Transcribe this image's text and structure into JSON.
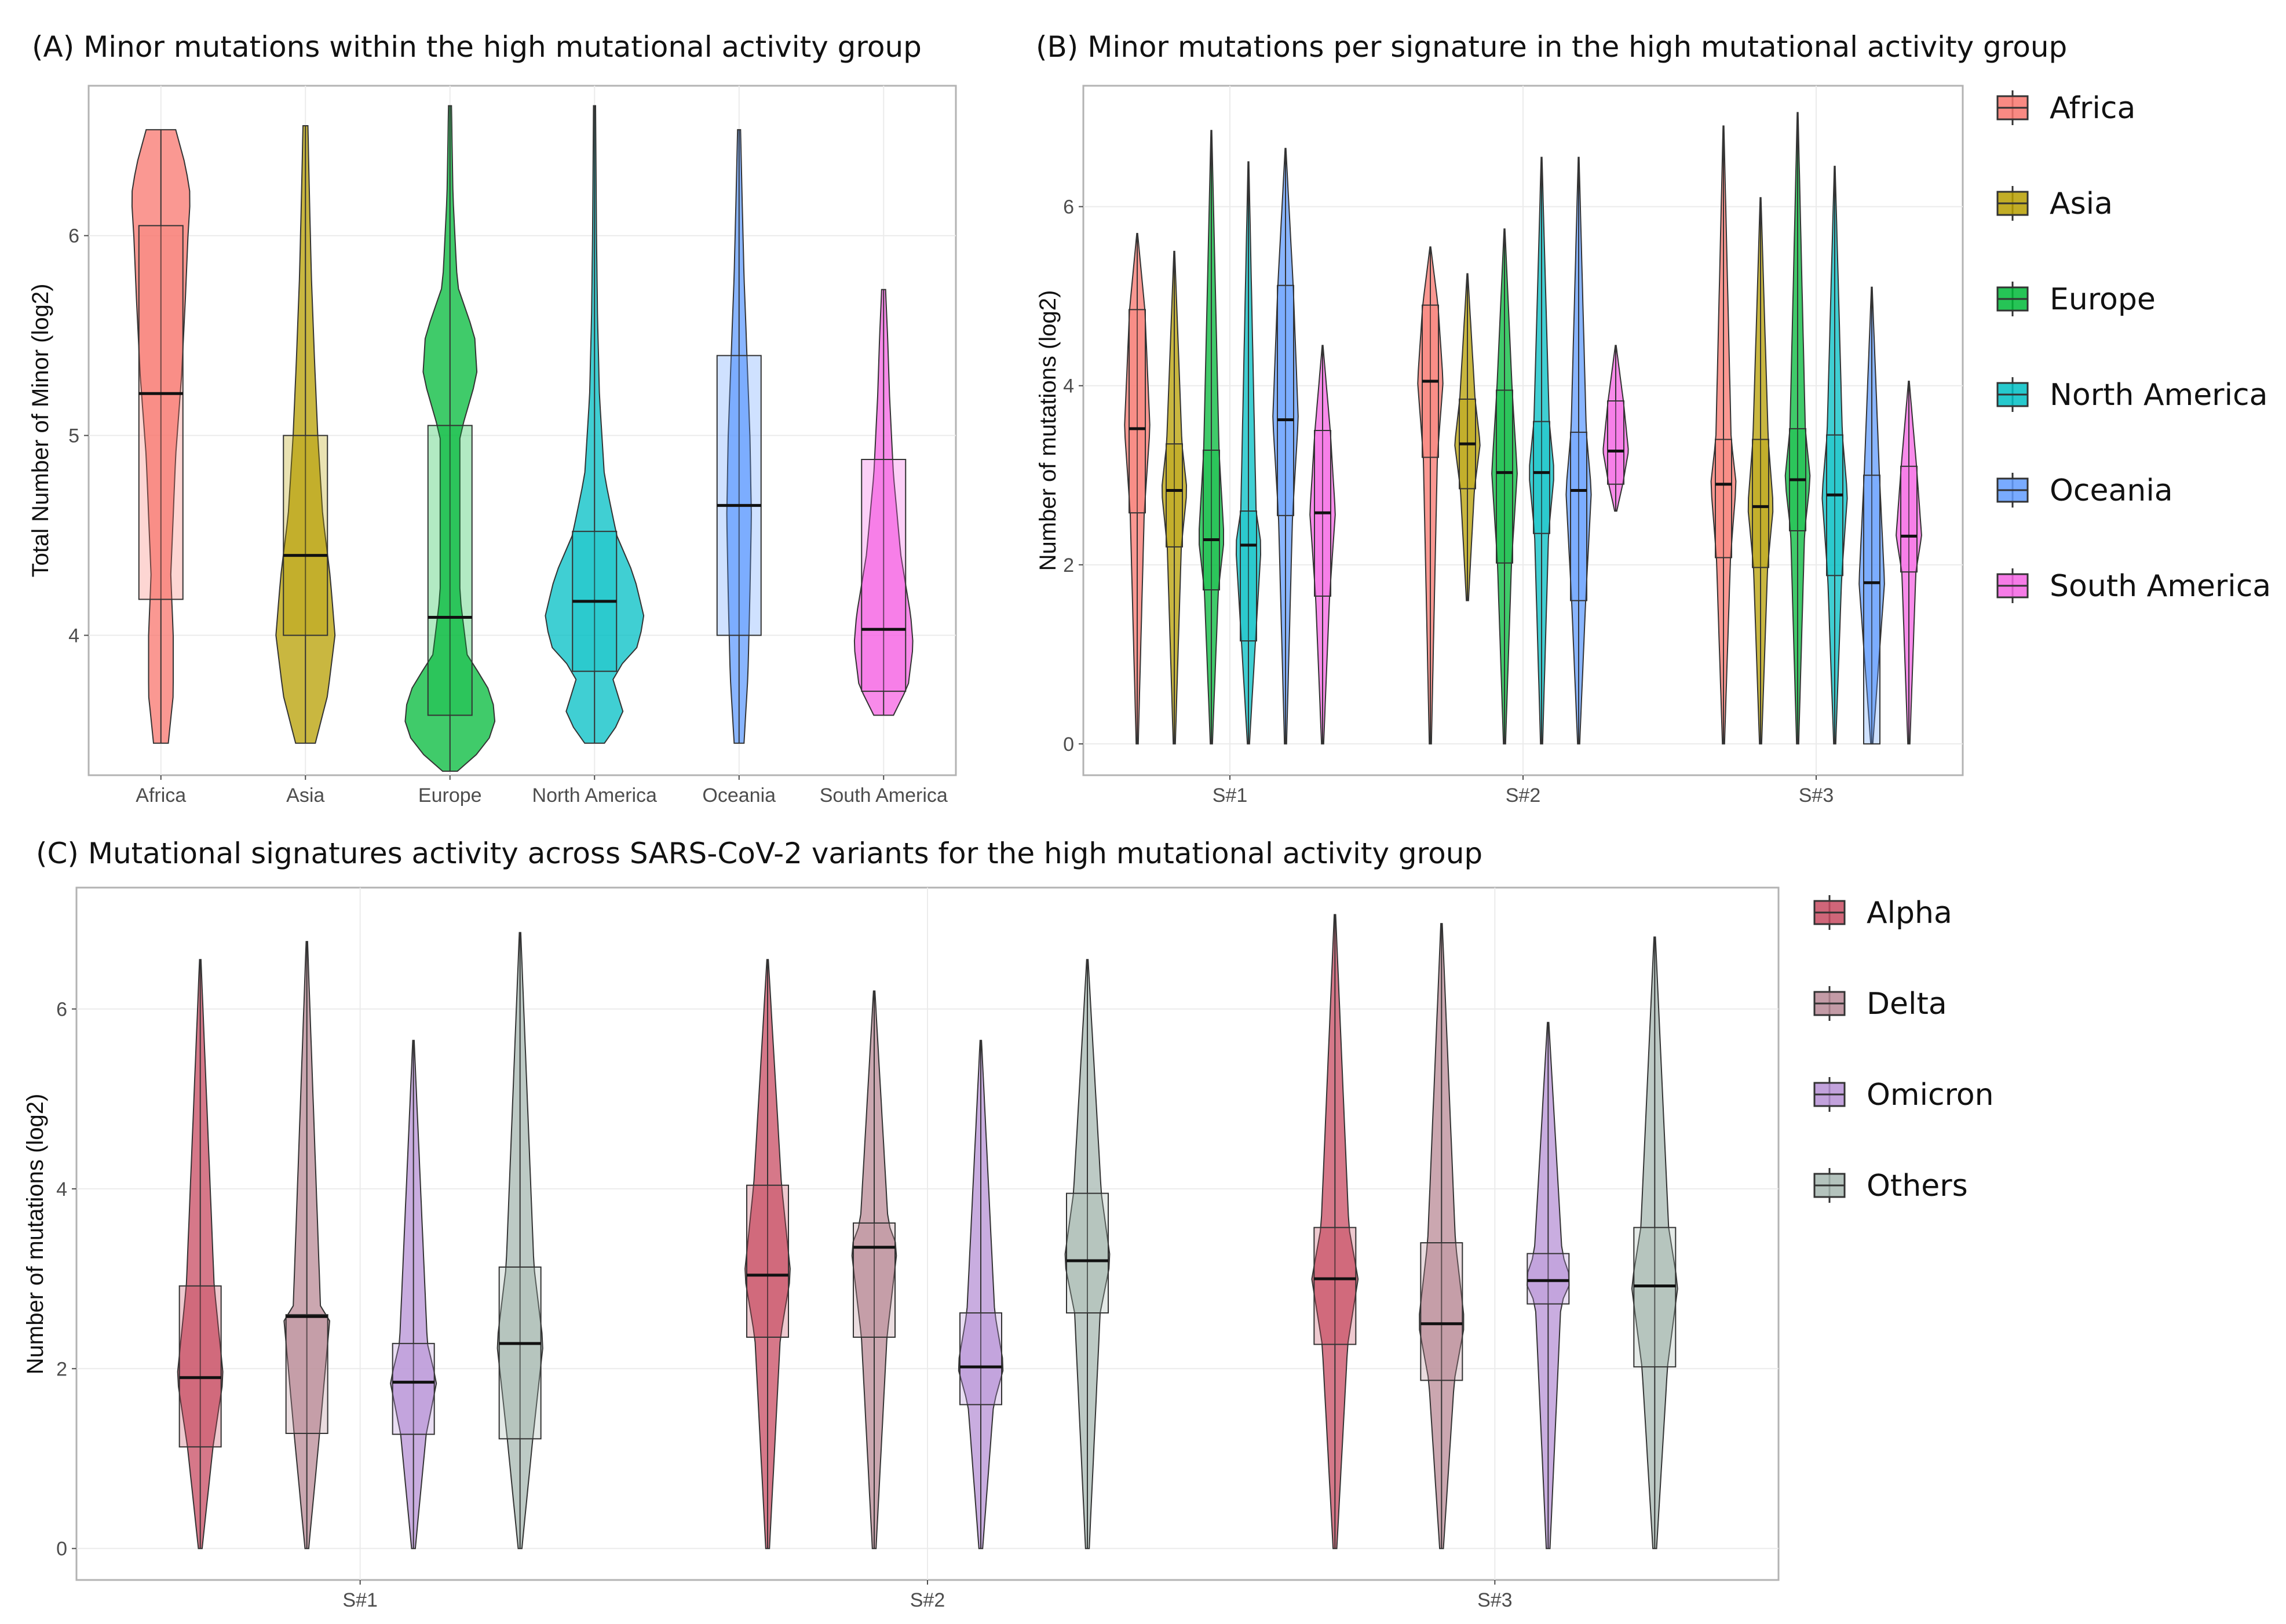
{
  "figure": {
    "panels": [
      {
        "id": "A",
        "title": "(A) Minor mutations within the high mutational activity group",
        "type": "violin+box",
        "xlabel": "",
        "ylabel": "Total Number of Minor (log2)",
        "ylim": [
          3.3,
          6.75
        ],
        "yticks": [
          4,
          5,
          6
        ],
        "categories": [
          "Africa",
          "Asia",
          "Europe",
          "North America",
          "Oceania",
          "South America"
        ],
        "groups": [
          {
            "name": "Africa",
            "color": "#F8766D",
            "min": 3.46,
            "q1": 4.18,
            "median": 5.21,
            "q3": 6.05,
            "max": 6.53,
            "profile": [
              [
                3.46,
                0.15
              ],
              [
                3.7,
                0.25
              ],
              [
                4.0,
                0.25
              ],
              [
                4.3,
                0.2
              ],
              [
                4.6,
                0.25
              ],
              [
                4.9,
                0.3
              ],
              [
                5.3,
                0.42
              ],
              [
                5.7,
                0.5
              ],
              [
                6.0,
                0.55
              ],
              [
                6.2,
                0.6
              ],
              [
                6.35,
                0.5
              ],
              [
                6.53,
                0.3
              ]
            ]
          },
          {
            "name": "Asia",
            "color": "#B79F00",
            "min": 3.46,
            "q1": 4.0,
            "median": 4.4,
            "q3": 5.0,
            "max": 6.55,
            "profile": [
              [
                3.46,
                0.2
              ],
              [
                3.7,
                0.45
              ],
              [
                4.0,
                0.6
              ],
              [
                4.3,
                0.5
              ],
              [
                4.6,
                0.35
              ],
              [
                5.0,
                0.25
              ],
              [
                5.4,
                0.18
              ],
              [
                5.8,
                0.12
              ],
              [
                6.2,
                0.08
              ],
              [
                6.55,
                0.05
              ]
            ]
          },
          {
            "name": "Europe",
            "color": "#00BA38",
            "min": 3.32,
            "q1": 3.6,
            "median": 4.09,
            "q3": 5.05,
            "max": 6.65,
            "profile": [
              [
                3.32,
                0.15
              ],
              [
                3.45,
                0.75
              ],
              [
                3.6,
                0.95
              ],
              [
                3.75,
                0.75
              ],
              [
                3.9,
                0.35
              ],
              [
                4.2,
                0.2
              ],
              [
                4.6,
                0.2
              ],
              [
                5.0,
                0.2
              ],
              [
                5.3,
                0.55
              ],
              [
                5.5,
                0.5
              ],
              [
                5.75,
                0.15
              ],
              [
                6.2,
                0.06
              ],
              [
                6.65,
                0.03
              ]
            ]
          },
          {
            "name": "North America",
            "color": "#00BFC4",
            "min": 3.46,
            "q1": 3.82,
            "median": 4.17,
            "q3": 4.52,
            "max": 6.65,
            "profile": [
              [
                3.46,
                0.2
              ],
              [
                3.6,
                0.6
              ],
              [
                3.8,
                0.35
              ],
              [
                3.95,
                0.9
              ],
              [
                4.1,
                1.0
              ],
              [
                4.3,
                0.8
              ],
              [
                4.5,
                0.45
              ],
              [
                4.8,
                0.2
              ],
              [
                5.2,
                0.1
              ],
              [
                5.6,
                0.06
              ],
              [
                6.0,
                0.04
              ],
              [
                6.65,
                0.02
              ]
            ]
          },
          {
            "name": "Oceania",
            "color": "#619CFF",
            "min": 3.46,
            "q1": 4.0,
            "median": 4.65,
            "q3": 5.4,
            "max": 6.53,
            "profile": [
              [
                3.46,
                0.1
              ],
              [
                3.8,
                0.18
              ],
              [
                4.2,
                0.22
              ],
              [
                4.6,
                0.25
              ],
              [
                5.0,
                0.22
              ],
              [
                5.4,
                0.16
              ],
              [
                5.8,
                0.1
              ],
              [
                6.2,
                0.06
              ],
              [
                6.53,
                0.03
              ]
            ]
          },
          {
            "name": "South America",
            "color": "#F564E3",
            "min": 3.6,
            "q1": 3.72,
            "median": 4.03,
            "q3": 4.88,
            "max": 5.73,
            "profile": [
              [
                3.6,
                0.2
              ],
              [
                3.75,
                0.5
              ],
              [
                3.95,
                0.6
              ],
              [
                4.1,
                0.55
              ],
              [
                4.4,
                0.35
              ],
              [
                4.8,
                0.2
              ],
              [
                5.2,
                0.12
              ],
              [
                5.5,
                0.08
              ],
              [
                5.73,
                0.04
              ]
            ]
          }
        ]
      },
      {
        "id": "B",
        "title": "(B) Minor mutations per signature in the high mutational activity group",
        "type": "grouped violin+box",
        "xlabel": "",
        "ylabel": "Number of mutations (log2)",
        "ylim": [
          -0.35,
          7.35
        ],
        "yticks": [
          0,
          2,
          4,
          6
        ],
        "categories": [
          "S#1",
          "S#2",
          "S#3"
        ],
        "series": [
          {
            "name": "Africa",
            "color": "#F8766D",
            "boxes": [
              [
                0,
                2.58,
                3.52,
                4.85,
                5.7
              ],
              [
                0,
                3.2,
                4.05,
                4.9,
                5.55
              ],
              [
                0,
                2.08,
                2.9,
                3.4,
                6.9
              ]
            ]
          },
          {
            "name": "Asia",
            "color": "#B79F00",
            "boxes": [
              [
                0,
                2.2,
                2.83,
                3.35,
                5.5
              ],
              [
                1.6,
                2.85,
                3.35,
                3.85,
                5.25
              ],
              [
                0,
                1.97,
                2.65,
                3.4,
                6.1
              ]
            ]
          },
          {
            "name": "Europe",
            "color": "#00BA38",
            "boxes": [
              [
                0,
                1.72,
                2.28,
                3.28,
                6.85
              ],
              [
                0,
                2.02,
                3.03,
                3.95,
                5.75
              ],
              [
                0,
                2.38,
                2.95,
                3.52,
                7.05
              ]
            ]
          },
          {
            "name": "North America",
            "color": "#00BFC4",
            "boxes": [
              [
                0,
                1.15,
                2.22,
                2.6,
                6.5
              ],
              [
                0,
                2.35,
                3.03,
                3.6,
                6.55
              ],
              [
                0,
                1.88,
                2.78,
                3.45,
                6.45
              ]
            ]
          },
          {
            "name": "Oceania",
            "color": "#619CFF",
            "boxes": [
              [
                0,
                2.55,
                3.62,
                5.12,
                6.65
              ],
              [
                0,
                1.6,
                2.83,
                3.48,
                6.55
              ],
              [
                0,
                0,
                1.8,
                3.0,
                5.1
              ]
            ]
          },
          {
            "name": "South America",
            "color": "#F564E3",
            "boxes": [
              [
                0,
                1.65,
                2.58,
                3.5,
                4.45
              ],
              [
                2.6,
                2.9,
                3.27,
                3.83,
                4.45
              ],
              [
                0,
                1.92,
                2.32,
                3.1,
                4.05
              ]
            ]
          }
        ]
      },
      {
        "id": "C",
        "title": "(C) Mutational signatures activity across SARS-CoV-2 variants for the high mutational activity group",
        "type": "grouped violin+box",
        "xlabel": "",
        "ylabel": "Number of mutations (log2)",
        "ylim": [
          -0.35,
          7.35
        ],
        "yticks": [
          0,
          2,
          4,
          6
        ],
        "categories": [
          "S#1",
          "S#2",
          "S#3"
        ],
        "series": [
          {
            "name": "Alpha",
            "color": "#C84B61",
            "boxes": [
              [
                0,
                1.13,
                1.9,
                2.92,
                6.55
              ],
              [
                0,
                2.35,
                3.04,
                4.04,
                6.55
              ],
              [
                0,
                2.27,
                3.0,
                3.57,
                7.05
              ]
            ]
          },
          {
            "name": "Delta",
            "color": "#B98A96",
            "boxes": [
              [
                0,
                1.28,
                2.58,
                2.6,
                6.75
              ],
              [
                0,
                2.35,
                3.35,
                3.62,
                6.2
              ],
              [
                0,
                1.87,
                2.5,
                3.4,
                6.95
              ]
            ]
          },
          {
            "name": "Omicron",
            "color": "#B792D6",
            "boxes": [
              [
                0,
                1.27,
                1.85,
                2.28,
                5.65
              ],
              [
                0,
                1.6,
                2.02,
                2.62,
                5.65
              ],
              [
                0,
                2.72,
                2.98,
                3.28,
                5.85
              ]
            ]
          },
          {
            "name": "Others",
            "color": "#A7B8B1",
            "boxes": [
              [
                0,
                1.22,
                2.28,
                3.13,
                6.85
              ],
              [
                0,
                2.62,
                3.2,
                3.95,
                6.55
              ],
              [
                0,
                2.02,
                2.92,
                3.57,
                6.8
              ]
            ]
          }
        ]
      }
    ]
  },
  "legend_b": {
    "items": [
      {
        "label": "Africa",
        "color": "#F8766D"
      },
      {
        "label": "Asia",
        "color": "#B79F00"
      },
      {
        "label": "Europe",
        "color": "#00BA38"
      },
      {
        "label": "North America",
        "color": "#00BFC4"
      },
      {
        "label": "Oceania",
        "color": "#619CFF"
      },
      {
        "label": "South America",
        "color": "#F564E3"
      }
    ]
  },
  "legend_c": {
    "items": [
      {
        "label": "Alpha",
        "color": "#C84B61"
      },
      {
        "label": "Delta",
        "color": "#B98A96"
      },
      {
        "label": "Omicron",
        "color": "#B792D6"
      },
      {
        "label": "Others",
        "color": "#A7B8B1"
      }
    ]
  }
}
